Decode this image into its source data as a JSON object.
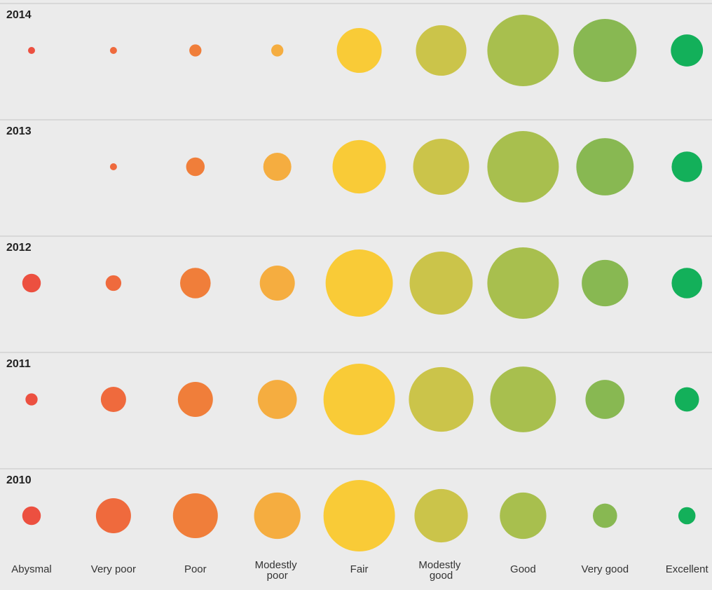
{
  "chart_data": {
    "type": "bubble-grid",
    "categories": [
      "Abysmal",
      "Very poor",
      "Poor",
      "Modestly poor",
      "Fair",
      "Modestly good",
      "Good",
      "Very good",
      "Excellent"
    ],
    "colors": [
      "#ec5040",
      "#ef6a3d",
      "#f07e3a",
      "#f5ad40",
      "#f9cb37",
      "#cbc44a",
      "#a8bf4e",
      "#88b852",
      "#13b05a"
    ],
    "series": [
      {
        "name": "2014",
        "values": [
          1,
          1,
          3,
          3,
          41,
          52,
          104,
          81,
          21
        ]
      },
      {
        "name": "2013",
        "values": [
          null,
          1,
          7,
          16,
          58,
          64,
          104,
          67,
          19
        ]
      },
      {
        "name": "2012",
        "values": [
          7,
          5,
          19,
          25,
          92,
          81,
          104,
          44,
          19
        ]
      },
      {
        "name": "2011",
        "values": [
          3,
          13,
          25,
          31,
          104,
          85,
          88,
          31,
          12
        ]
      },
      {
        "name": "2010",
        "values": [
          7,
          25,
          41,
          44,
          104,
          58,
          44,
          12,
          6
        ]
      }
    ]
  }
}
